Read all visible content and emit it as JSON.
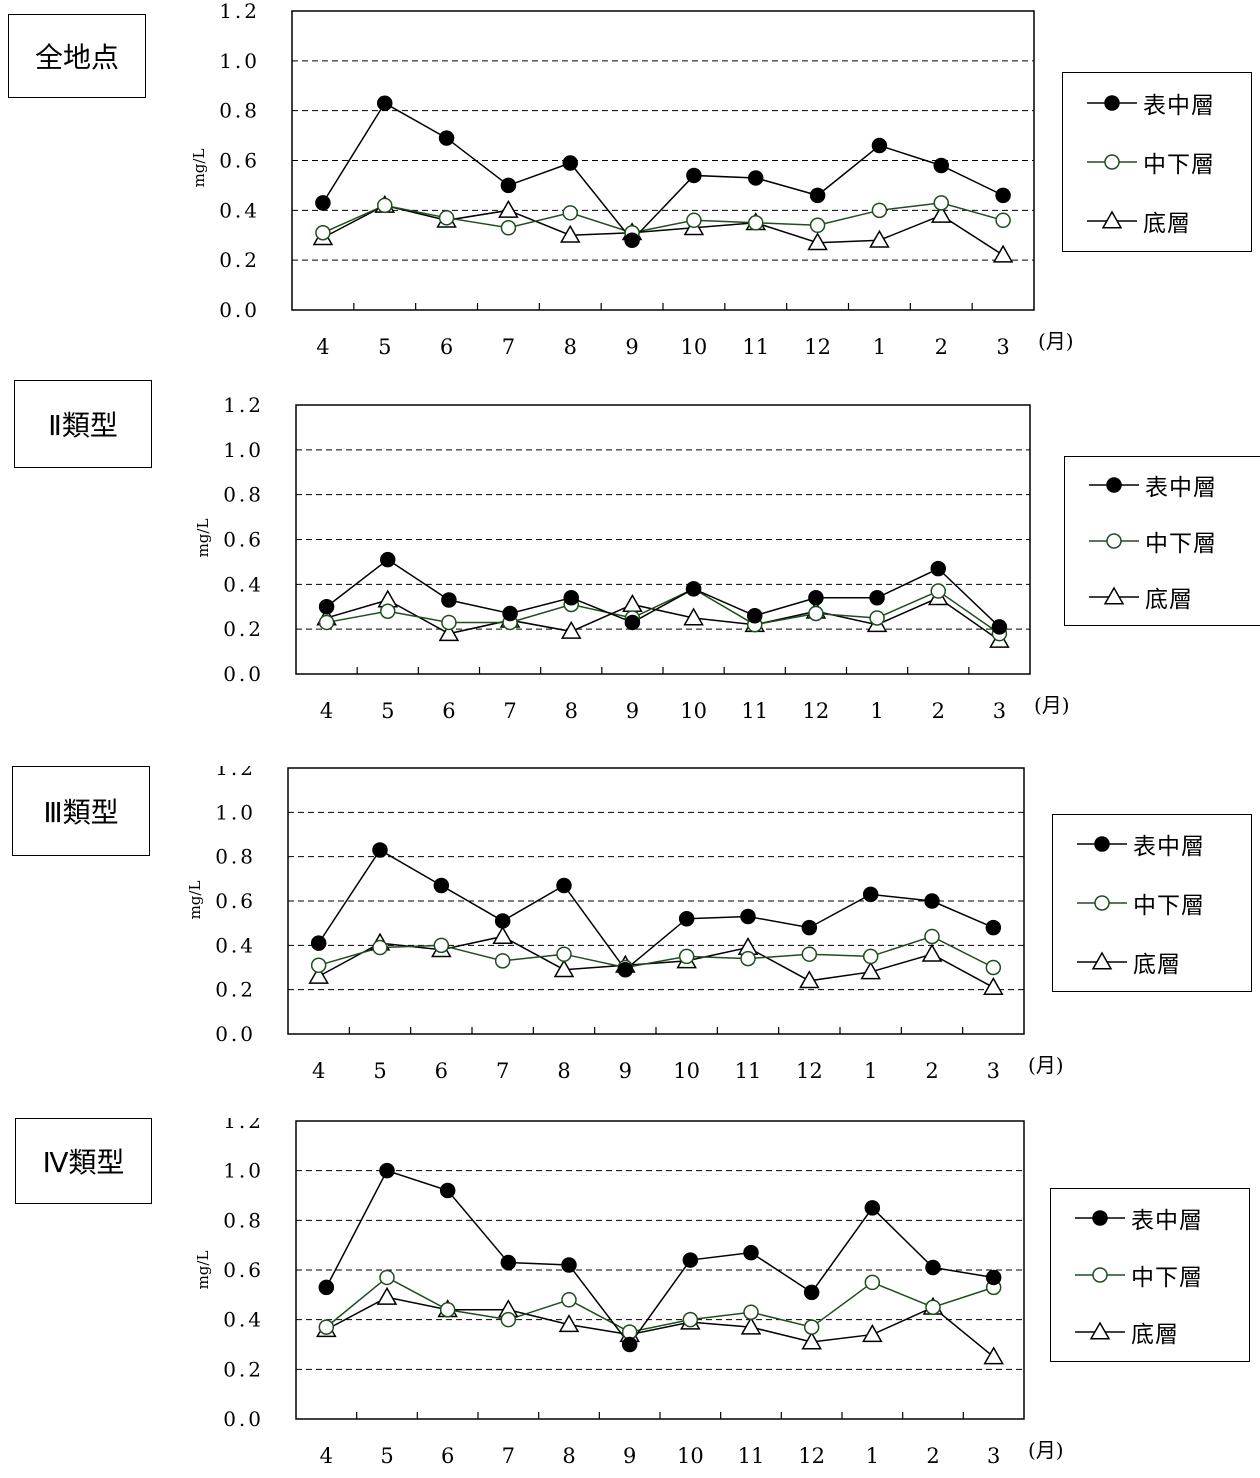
{
  "months": [
    "4",
    "5",
    "6",
    "7",
    "8",
    "9",
    "10",
    "11",
    "12",
    "1",
    "2",
    "3"
  ],
  "month_unit": "(月)",
  "y_unit": "mg/L",
  "y_ticks": [
    "0.0",
    "0.2",
    "0.4",
    "0.6",
    "0.8",
    "1.0",
    "1.2"
  ],
  "legend": [
    "表中層",
    "中下層",
    "底層"
  ],
  "colors": {
    "surface": "#000000",
    "middle": "#1f4d1f",
    "bottom": "#000000"
  },
  "chart_data": [
    {
      "type": "line",
      "title": "全地点",
      "ylabel": "mg/L",
      "ylim": [
        0,
        1.2
      ],
      "grid": true,
      "legend_position": "right",
      "categories": [
        "4",
        "5",
        "6",
        "7",
        "8",
        "9",
        "10",
        "11",
        "12",
        "1",
        "2",
        "3"
      ],
      "series": [
        {
          "name": "表中層",
          "marker": "filled-circle",
          "values": [
            0.43,
            0.83,
            0.69,
            0.5,
            0.59,
            0.28,
            0.54,
            0.53,
            0.46,
            0.66,
            0.58,
            0.46
          ]
        },
        {
          "name": "中下層",
          "marker": "open-circle",
          "values": [
            0.31,
            0.42,
            0.37,
            0.33,
            0.39,
            0.31,
            0.36,
            0.35,
            0.34,
            0.4,
            0.43,
            0.36
          ]
        },
        {
          "name": "底層",
          "marker": "open-triangle",
          "values": [
            0.29,
            0.42,
            0.36,
            0.4,
            0.3,
            0.31,
            0.33,
            0.35,
            0.27,
            0.28,
            0.38,
            0.22
          ]
        }
      ]
    },
    {
      "type": "line",
      "title": "Ⅱ類型",
      "ylabel": "mg/L",
      "ylim": [
        0,
        1.2
      ],
      "grid": true,
      "legend_position": "right",
      "categories": [
        "4",
        "5",
        "6",
        "7",
        "8",
        "9",
        "10",
        "11",
        "12",
        "1",
        "2",
        "3"
      ],
      "series": [
        {
          "name": "表中層",
          "marker": "filled-circle",
          "values": [
            0.3,
            0.51,
            0.33,
            0.27,
            0.34,
            0.23,
            0.38,
            0.26,
            0.34,
            0.34,
            0.47,
            0.21
          ]
        },
        {
          "name": "中下層",
          "marker": "open-circle",
          "values": [
            0.23,
            0.28,
            0.23,
            0.23,
            0.31,
            0.25,
            0.38,
            0.22,
            0.27,
            0.25,
            0.37,
            0.18
          ]
        },
        {
          "name": "底層",
          "marker": "open-triangle",
          "values": [
            0.25,
            0.33,
            0.18,
            0.24,
            0.19,
            0.31,
            0.25,
            0.22,
            0.28,
            0.22,
            0.34,
            0.15
          ]
        }
      ]
    },
    {
      "type": "line",
      "title": "Ⅲ類型",
      "ylabel": "mg/L",
      "ylim": [
        0,
        1.2
      ],
      "grid": true,
      "legend_position": "right",
      "categories": [
        "4",
        "5",
        "6",
        "7",
        "8",
        "9",
        "10",
        "11",
        "12",
        "1",
        "2",
        "3"
      ],
      "series": [
        {
          "name": "表中層",
          "marker": "filled-circle",
          "values": [
            0.41,
            0.83,
            0.67,
            0.51,
            0.67,
            0.29,
            0.52,
            0.53,
            0.48,
            0.63,
            0.6,
            0.48
          ]
        },
        {
          "name": "中下層",
          "marker": "open-circle",
          "values": [
            0.31,
            0.39,
            0.4,
            0.33,
            0.36,
            0.3,
            0.35,
            0.34,
            0.36,
            0.35,
            0.44,
            0.3
          ]
        },
        {
          "name": "底層",
          "marker": "open-triangle",
          "values": [
            0.26,
            0.41,
            0.38,
            0.44,
            0.29,
            0.31,
            0.33,
            0.39,
            0.24,
            0.28,
            0.36,
            0.21
          ]
        }
      ]
    },
    {
      "type": "line",
      "title": "Ⅳ類型",
      "ylabel": "mg/L",
      "ylim": [
        0,
        1.2
      ],
      "grid": true,
      "legend_position": "right",
      "categories": [
        "4",
        "5",
        "6",
        "7",
        "8",
        "9",
        "10",
        "11",
        "12",
        "1",
        "2",
        "3"
      ],
      "series": [
        {
          "name": "表中層",
          "marker": "filled-circle",
          "values": [
            0.53,
            1.0,
            0.92,
            0.63,
            0.62,
            0.3,
            0.64,
            0.67,
            0.51,
            0.85,
            0.61,
            0.57
          ]
        },
        {
          "name": "中下層",
          "marker": "open-circle",
          "values": [
            0.37,
            0.57,
            0.44,
            0.4,
            0.48,
            0.35,
            0.4,
            0.43,
            0.37,
            0.55,
            0.45,
            0.53
          ]
        },
        {
          "name": "底層",
          "marker": "open-triangle",
          "values": [
            0.36,
            0.49,
            0.44,
            0.44,
            0.38,
            0.34,
            0.39,
            0.37,
            0.31,
            0.34,
            0.45,
            0.25
          ]
        }
      ]
    }
  ]
}
